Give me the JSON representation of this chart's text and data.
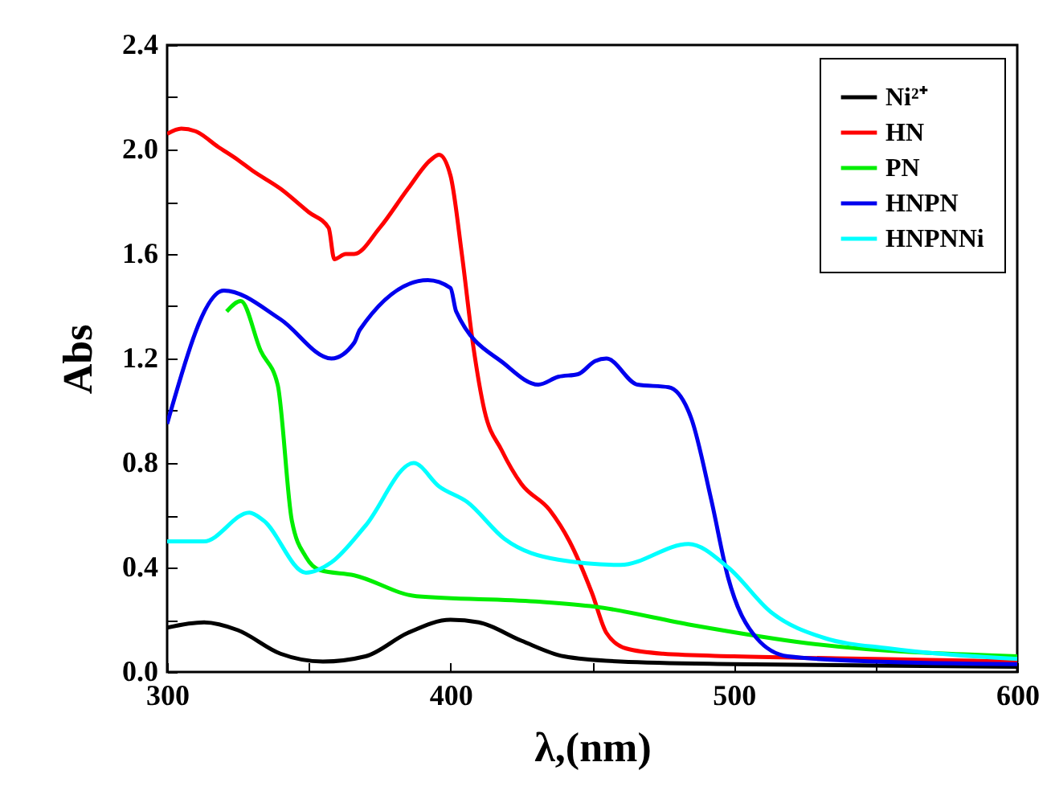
{
  "chart_data": {
    "type": "line",
    "xlabel": "λ,(nm)",
    "ylabel": "Abs",
    "xlim": [
      300,
      600
    ],
    "xticks": [
      300,
      {
        "value": 350,
        "label": null
      },
      400,
      {
        "value": 450,
        "label": null
      },
      500,
      {
        "value": 550,
        "label": null
      },
      600
    ],
    "ylim": [
      0,
      2.4
    ],
    "yticks": [
      "0.0",
      {
        "value": 0.2,
        "label": null
      },
      0.4,
      {
        "value": 0.6,
        "label": null
      },
      0.8,
      {
        "value": 1.0,
        "label": null
      },
      1.2,
      {
        "value": 1.4,
        "label": null
      },
      1.6,
      {
        "value": 1.8,
        "label": null
      },
      {
        "value": 2.0,
        "label": "2.0"
      },
      {
        "value": 2.2,
        "label": null
      },
      2.4
    ],
    "grid": false,
    "legend": "top right",
    "marker": "none",
    "line_style": "solid",
    "series": [
      {
        "name": "Ni²⁺",
        "color": "#000000",
        "x": [
          300,
          313,
          325,
          340,
          355,
          370,
          385,
          400,
          410,
          425,
          440,
          460,
          500,
          550,
          600
        ],
        "values": [
          0.17,
          0.19,
          0.16,
          0.07,
          0.04,
          0.06,
          0.15,
          0.2,
          0.19,
          0.12,
          0.06,
          0.04,
          0.03,
          0.025,
          0.02
        ]
      },
      {
        "name": "HN",
        "color": "#ff0000",
        "x": [
          300,
          305,
          310,
          318,
          325,
          330,
          340,
          350,
          357,
          359,
          363,
          366,
          375,
          385,
          393,
          396,
          400,
          404,
          408,
          412,
          418,
          425,
          435,
          442,
          450,
          455,
          462,
          475,
          500,
          550,
          600
        ],
        "values": [
          2.06,
          2.08,
          2.07,
          2.01,
          1.96,
          1.92,
          1.85,
          1.76,
          1.7,
          1.58,
          1.6,
          1.6,
          1.7,
          1.85,
          1.96,
          1.98,
          1.9,
          1.6,
          1.25,
          1.0,
          0.85,
          0.72,
          0.62,
          0.5,
          0.3,
          0.15,
          0.09,
          0.07,
          0.06,
          0.05,
          0.04
        ]
      },
      {
        "name": "PN",
        "color": "#00ee00",
        "x": [
          321,
          326,
          333,
          339,
          344,
          349,
          354,
          366,
          388,
          430,
          451,
          485,
          526,
          600
        ],
        "values": [
          1.38,
          1.42,
          1.23,
          1.1,
          0.58,
          0.44,
          0.39,
          0.37,
          0.29,
          0.27,
          0.25,
          0.18,
          0.11,
          0.06
        ]
      },
      {
        "name": "HNPN",
        "color": "#0000ee",
        "x": [
          300,
          320,
          340,
          358,
          366,
          368,
          392,
          400,
          402,
          419,
          431,
          438,
          445,
          451,
          455,
          466,
          477,
          485,
          492,
          498,
          508,
          519,
          550,
          600
        ],
        "values": [
          0.95,
          1.46,
          1.35,
          1.2,
          1.26,
          1.31,
          1.5,
          1.47,
          1.38,
          1.18,
          1.1,
          1.13,
          1.14,
          1.19,
          1.2,
          1.1,
          1.09,
          0.97,
          0.66,
          0.36,
          0.13,
          0.06,
          0.04,
          0.03
        ]
      },
      {
        "name": "HNPNNi",
        "color": "#00ffff",
        "x": [
          300,
          313,
          329,
          334,
          349,
          358,
          370,
          387,
          396,
          406,
          419,
          438,
          460,
          484,
          498,
          513,
          532,
          555,
          600
        ],
        "values": [
          0.5,
          0.5,
          0.61,
          0.58,
          0.38,
          0.42,
          0.56,
          0.8,
          0.71,
          0.65,
          0.51,
          0.43,
          0.41,
          0.49,
          0.4,
          0.23,
          0.13,
          0.09,
          0.05
        ]
      }
    ]
  }
}
